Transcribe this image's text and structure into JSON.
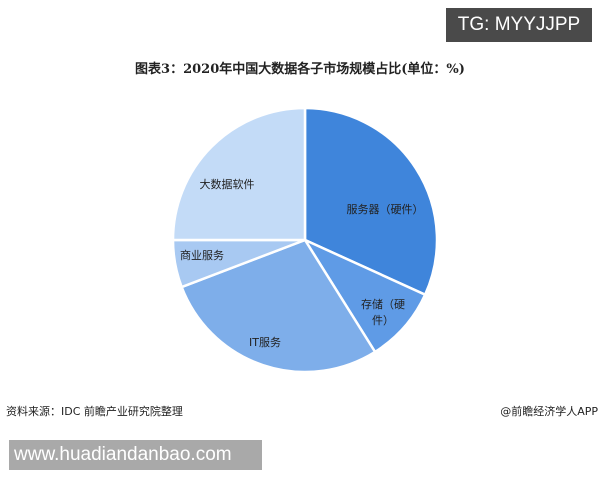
{
  "watermark_tag": "TG: MYYJJPP",
  "footer": {
    "source": "资料来源：IDC 前瞻产业研究院整理",
    "brand": "@前瞻经济学人APP",
    "site": "www.huadiandanbao.com"
  },
  "chart_data": {
    "type": "pie",
    "title": "图表3：2020年中国大数据各子市场规模占比(单位：%)",
    "start": "top",
    "direction": "clockwise",
    "slices": [
      {
        "label": "服务器（硬件）",
        "value": 31.8,
        "color": "#3f85db"
      },
      {
        "label": "存储（硬件）",
        "value": 9.3,
        "color": "#5f9be6"
      },
      {
        "label": "IT服务",
        "value": 28.1,
        "color": "#7eaeea"
      },
      {
        "label": "商业服务",
        "value": 5.8,
        "color": "#a8c9f2"
      },
      {
        "label": "大数据软件",
        "value": 25.0,
        "color": "#c3dbf7"
      }
    ]
  }
}
